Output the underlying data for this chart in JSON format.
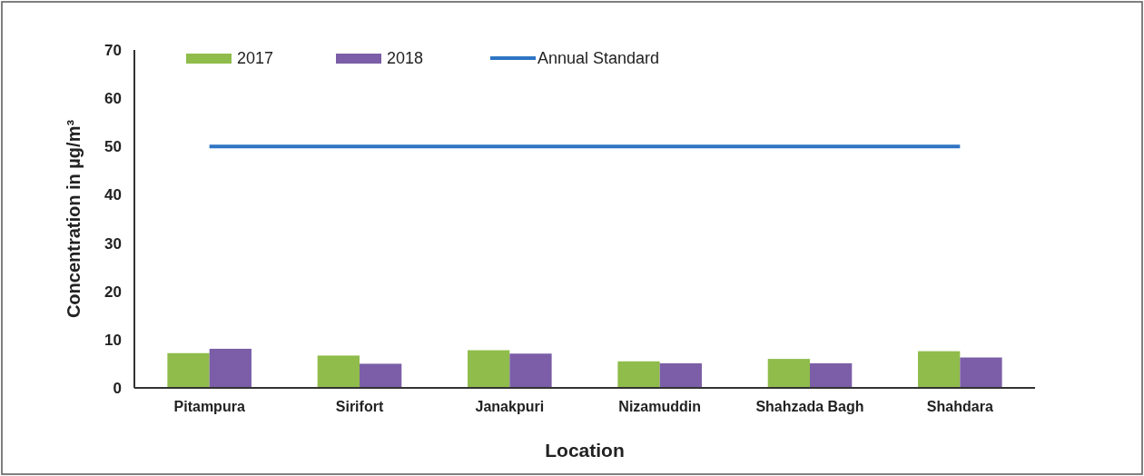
{
  "chart_data": {
    "type": "bar",
    "xlabel": "Location",
    "ylabel": "Concentration in µg/m³",
    "categories": [
      "Pitampura",
      "Sirifort",
      "Janakpuri",
      "Nizamuddin",
      "Shahzada Bagh",
      "Shahdara"
    ],
    "series": [
      {
        "name": "2017",
        "color": "#8fbc4a",
        "values": [
          7.2,
          6.7,
          7.8,
          5.5,
          6.0,
          7.6
        ]
      },
      {
        "name": "2018",
        "color": "#7b5ea7",
        "values": [
          8.1,
          5.0,
          7.1,
          5.1,
          5.1,
          6.3
        ]
      },
      {
        "name": "Annual Standard",
        "type": "line",
        "color": "#2e75c4",
        "values": [
          50,
          50,
          50,
          50,
          50,
          50
        ]
      }
    ],
    "ylim": [
      0,
      70
    ],
    "yticks": [
      0,
      10,
      20,
      30,
      40,
      50,
      60,
      70
    ],
    "grid": false,
    "legend": "top"
  }
}
